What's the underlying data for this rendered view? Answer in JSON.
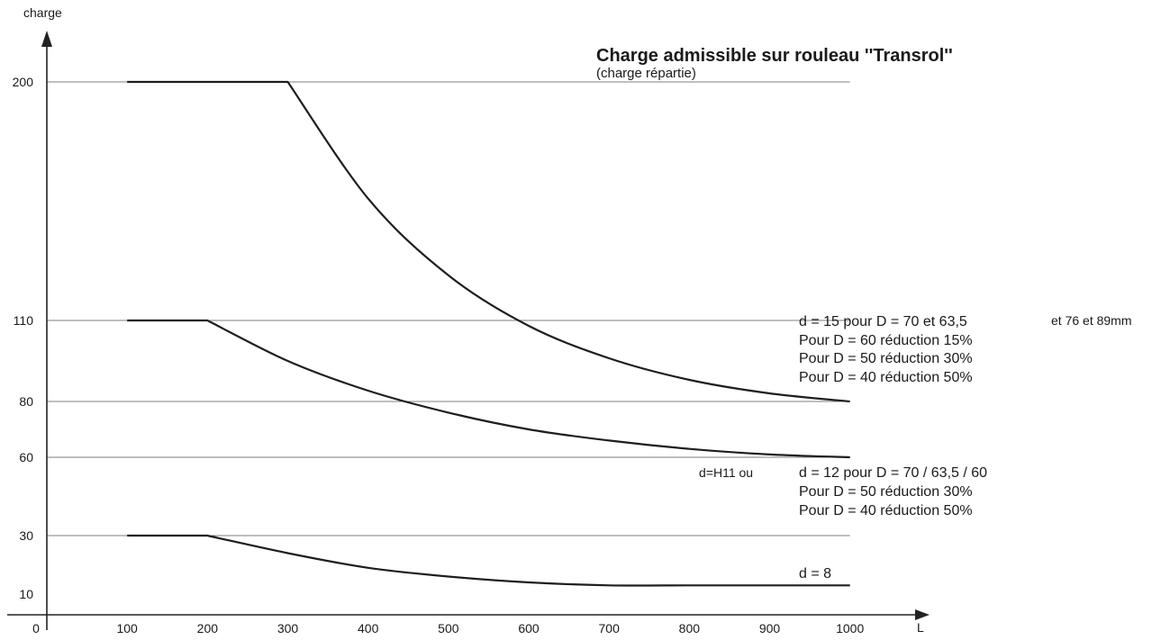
{
  "chart_data": {
    "type": "line",
    "title": "Charge admissible sur rouleau ''Transrol''",
    "subtitle": "(charge répartie)",
    "xlabel": "L",
    "ylabel": "charge",
    "x_ticks": [
      "0",
      "100",
      "200",
      "300",
      "400",
      "500",
      "600",
      "700",
      "800",
      "900",
      "1000"
    ],
    "y_ticks": [
      "10",
      "30",
      "60",
      "80",
      "110",
      "200"
    ],
    "xlim": [
      0,
      1100
    ],
    "ylim": [
      0,
      230
    ],
    "grid": "horizontal lines at 200, 110, 80, 60, 30",
    "reference_lines": [
      200,
      110,
      80,
      60,
      30
    ],
    "series": [
      {
        "x": [
          100,
          300,
          400,
          500,
          600,
          700,
          800,
          900,
          1000
        ],
        "y": [
          200,
          200,
          156,
          127,
          108,
          96,
          88,
          83,
          80
        ]
      },
      {
        "x": [
          100,
          200,
          300,
          400,
          500,
          600,
          700,
          800,
          900,
          1000
        ],
        "y": [
          110,
          110,
          95,
          84,
          76,
          70,
          66,
          63,
          61,
          60
        ]
      },
      {
        "x": [
          100,
          200,
          300,
          400,
          500,
          600,
          700,
          800,
          900,
          1000
        ],
        "y": [
          30,
          30,
          24,
          19,
          16,
          14,
          13,
          13,
          13,
          13
        ]
      }
    ],
    "annotations": {
      "group1": [
        "d = 15 pour D = 70 et 63,5",
        "Pour D = 60 réduction 15%",
        "Pour D = 50 réduction 30%",
        "Pour D = 40 réduction 50%"
      ],
      "group1_extra": "et 76 et 89mm",
      "group2_prefix": "d=H11 ou",
      "group2": [
        "d = 12 pour D = 70 / 63,5 / 60",
        "Pour D = 50 réduction 30%",
        "Pour D = 40 réduction 50%"
      ],
      "group3": "d = 8"
    }
  }
}
